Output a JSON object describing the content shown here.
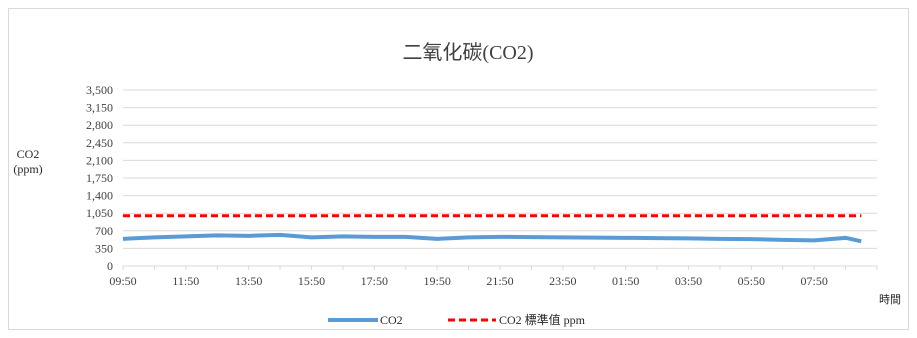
{
  "chart_data": {
    "type": "line",
    "title": "二氧化碳(CO2)",
    "ylabel": [
      "CO2",
      "(ppm)"
    ],
    "xlabel": "時間",
    "ylim": [
      0,
      3500
    ],
    "yticks": [
      0,
      350,
      700,
      1050,
      1400,
      1750,
      2100,
      2450,
      2800,
      3150,
      3500
    ],
    "ytick_labels": [
      "0",
      "350",
      "700",
      "1,050",
      "1,400",
      "1,750",
      "2,100",
      "2,450",
      "2,800",
      "3,150",
      "3,500"
    ],
    "x_tick_labels": [
      "09:50",
      "11:50",
      "13:50",
      "15:50",
      "17:50",
      "19:50",
      "21:50",
      "23:50",
      "01:50",
      "03:50",
      "05:50",
      "07:50"
    ],
    "x_hours": [
      0,
      1,
      2,
      3,
      4,
      5,
      6,
      7,
      8,
      9,
      10,
      11,
      12,
      13,
      14,
      15,
      16,
      17,
      18,
      19,
      20,
      21,
      22,
      23,
      23.5
    ],
    "grid": true,
    "legend_position": "bottom",
    "series": [
      {
        "name": "CO2",
        "color": "#5b9bd5",
        "style": "solid",
        "values": [
          540,
          570,
          590,
          610,
          600,
          620,
          570,
          590,
          580,
          580,
          540,
          570,
          580,
          575,
          570,
          565,
          560,
          555,
          550,
          540,
          535,
          520,
          510,
          560,
          490
        ]
      },
      {
        "name": "CO2 標準值 ppm",
        "color": "#ff0000",
        "style": "dashed",
        "values": [
          1000,
          1000,
          1000,
          1000,
          1000,
          1000,
          1000,
          1000,
          1000,
          1000,
          1000,
          1000,
          1000,
          1000,
          1000,
          1000,
          1000,
          1000,
          1000,
          1000,
          1000,
          1000,
          1000,
          1000,
          1000
        ]
      }
    ]
  }
}
